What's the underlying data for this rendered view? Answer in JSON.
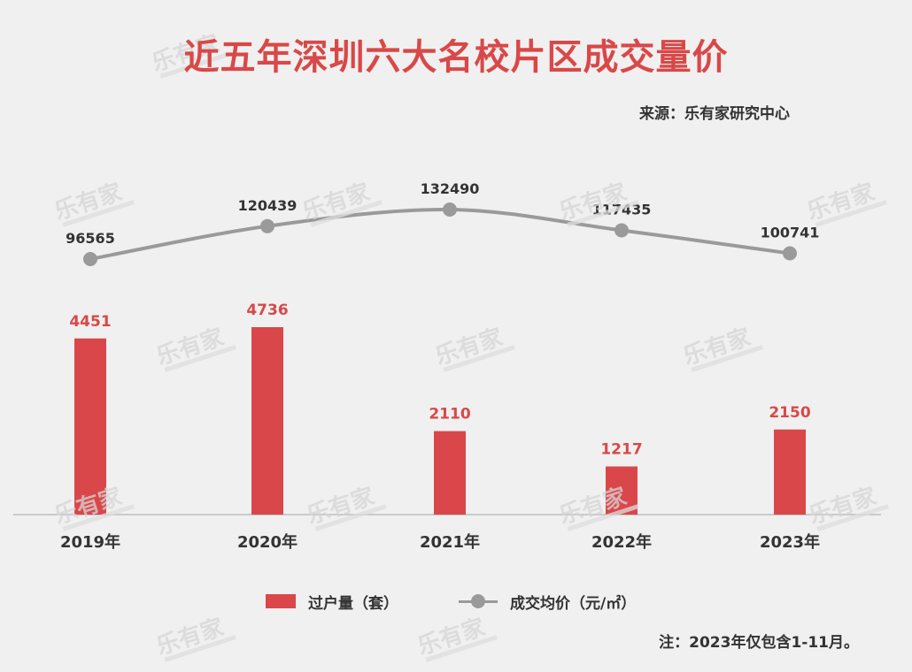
{
  "title": "近五年深圳六大名校片区成交量价",
  "source": "来源：乐有家研究中心",
  "note": "注：2023年仅包含1-11月。",
  "watermark": "乐有家",
  "legend": {
    "bar_label": "过户量（套）",
    "line_label": "成交均价（元/㎡）"
  },
  "colors": {
    "title": "#d94848",
    "bar": "#d9474a",
    "bar_label": "#d94848",
    "line": "#9a9a9a",
    "text": "#333333"
  },
  "chart_data": {
    "type": "bar",
    "categories": [
      "2019年",
      "2020年",
      "2021年",
      "2022年",
      "2023年"
    ],
    "series": [
      {
        "name": "过户量（套）",
        "type": "bar",
        "values": [
          4451,
          4736,
          2110,
          1217,
          2150
        ]
      },
      {
        "name": "成交均价（元/㎡）",
        "type": "line",
        "values": [
          96565,
          120439,
          132490,
          117435,
          100741
        ]
      }
    ],
    "title": "近五年深圳六大名校片区成交量价",
    "xlabel": "",
    "ylabel": "",
    "grid": false,
    "legend": "bottom"
  }
}
